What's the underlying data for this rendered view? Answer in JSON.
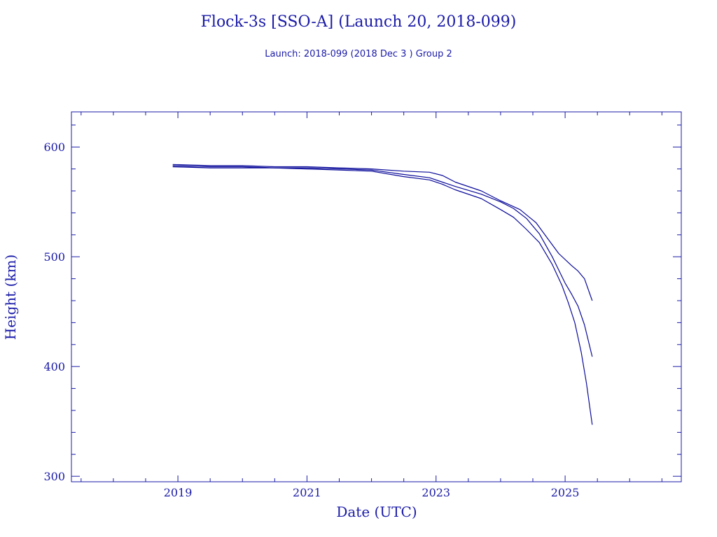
{
  "title": "Flock-3s [SSO-A] (Launch 20, 2018-099)",
  "subtitle": "Launch: 2018-099  (2018 Dec  3 )  Group 2",
  "colors": {
    "ink": "#1a1aa8",
    "series": "#0a0a9a",
    "background": "#ffffff"
  },
  "chart_data": {
    "type": "line",
    "xlabel": "Date (UTC)",
    "ylabel": "Height (km)",
    "x_unit": "year",
    "xlim": [
      2017.35,
      2026.8
    ],
    "ylim": [
      295,
      632
    ],
    "x_ticks": [
      2019,
      2021,
      2023,
      2025
    ],
    "x_tick_labels": [
      "2019",
      "2021",
      "2023",
      "2025"
    ],
    "y_ticks": [
      300,
      400,
      500,
      600
    ],
    "y_tick_labels": [
      "300",
      "400",
      "500",
      "600"
    ],
    "grid": false,
    "series": [
      {
        "x": [
          2018.92,
          2019.5,
          2020.0,
          2020.5,
          2021.0,
          2021.5,
          2022.0,
          2022.5,
          2022.9,
          2023.1,
          2023.3,
          2023.7,
          2024.0,
          2024.3,
          2024.55,
          2024.7,
          2024.9,
          2025.1,
          2025.2,
          2025.3,
          2025.42
        ],
        "y": [
          584,
          583,
          583,
          582,
          582,
          581,
          580,
          578,
          577,
          574,
          568,
          560,
          551,
          543,
          531,
          519,
          503,
          492,
          487,
          480,
          460
        ]
      },
      {
        "x": [
          2018.92,
          2019.5,
          2020.0,
          2020.5,
          2021.0,
          2021.5,
          2022.0,
          2022.5,
          2022.9,
          2023.1,
          2023.3,
          2023.7,
          2024.0,
          2024.2,
          2024.4,
          2024.6,
          2024.8,
          2025.0,
          2025.1,
          2025.2,
          2025.3,
          2025.42
        ],
        "y": [
          583,
          582,
          582,
          581,
          581,
          580,
          579,
          575,
          572,
          568,
          564,
          557,
          550,
          544,
          535,
          521,
          500,
          476,
          466,
          455,
          438,
          409
        ]
      },
      {
        "x": [
          2018.92,
          2019.5,
          2020.0,
          2020.5,
          2021.0,
          2021.5,
          2022.0,
          2022.5,
          2022.9,
          2023.1,
          2023.3,
          2023.7,
          2024.0,
          2024.2,
          2024.4,
          2024.6,
          2024.8,
          2024.95,
          2025.05,
          2025.15,
          2025.25,
          2025.33,
          2025.42
        ],
        "y": [
          582,
          581,
          581,
          581,
          580,
          579,
          578,
          573,
          570,
          566,
          561,
          553,
          543,
          536,
          525,
          513,
          493,
          474,
          458,
          440,
          413,
          385,
          347
        ]
      }
    ]
  }
}
